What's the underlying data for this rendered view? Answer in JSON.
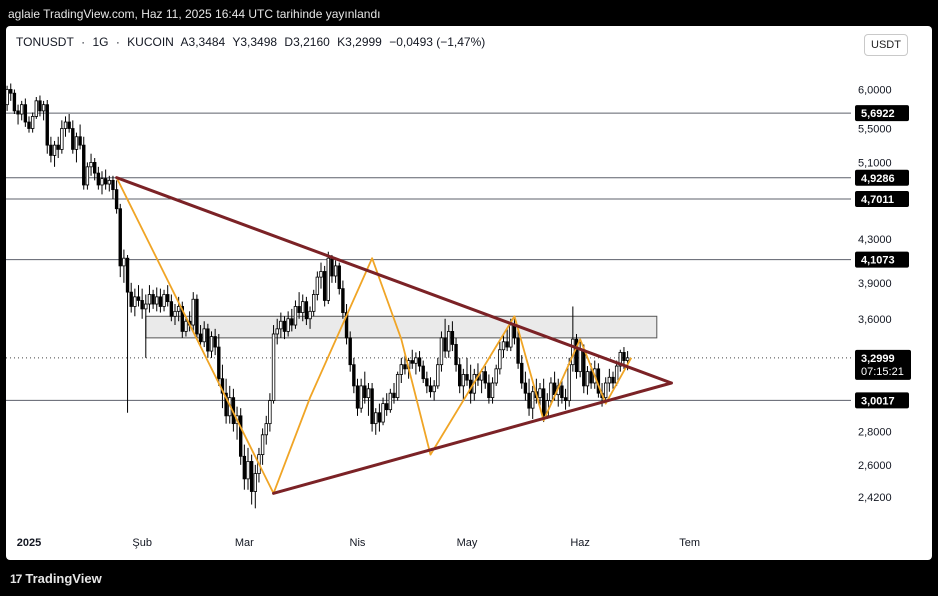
{
  "header": {
    "publisher_text": "aglaie TradingView.com, Haz 11, 2025 16:44 UTC tarihinde yayınlandı"
  },
  "legend": {
    "symbol": "TONUSDT",
    "sep1": "·",
    "interval": "1G",
    "sep2": "·",
    "exchange": "KUCOIN",
    "open": "A3,3484",
    "high": "Y3,3498",
    "low": "D3,2160",
    "close": "K3,2999",
    "change": "−0,0493 (−1,47%)"
  },
  "currency_button": "USDT",
  "footer": {
    "logo_mark": "17",
    "logo_text": "TradingView"
  },
  "colors": {
    "up": "#ffffff",
    "down": "#000000",
    "trendline": "#7b2226",
    "zigzag": "#f0a526",
    "zone_fill": "#e3e3e3",
    "hline": "#5d606b"
  },
  "chart_data": {
    "type": "candlestick",
    "ylim": [
      2.32,
      6.35
    ],
    "y_tick_labels": [
      {
        "value": 6.0,
        "label": "6,0000"
      },
      {
        "value": 5.5,
        "label": "5,5000"
      },
      {
        "value": 5.1,
        "label": "5,1000"
      },
      {
        "value": 4.3,
        "label": "4,3000"
      },
      {
        "value": 3.9,
        "label": "3,9000"
      },
      {
        "value": 3.6,
        "label": "3,6000"
      },
      {
        "value": 2.8,
        "label": "2,8000"
      },
      {
        "value": 2.6,
        "label": "2,6000"
      },
      {
        "value": 2.42,
        "label": "2,4200"
      }
    ],
    "x_tick_labels": [
      {
        "day": 0,
        "label": "2025"
      },
      {
        "day": 31,
        "label": "Şub"
      },
      {
        "day": 59,
        "label": "Mar"
      },
      {
        "day": 90,
        "label": "Nis"
      },
      {
        "day": 120,
        "label": "May"
      },
      {
        "day": 151,
        "label": "Haz"
      },
      {
        "day": 181,
        "label": "Tem"
      }
    ],
    "x_start_offset_days": -7,
    "x_end_day": 196,
    "horizontal_levels": [
      {
        "value": 5.6922,
        "label": "5,6922"
      },
      {
        "value": 4.9286,
        "label": "4,9286"
      },
      {
        "value": 4.7011,
        "label": "4,7011"
      },
      {
        "value": 4.1073,
        "label": "4,1073"
      },
      {
        "value": 3.0017,
        "label": "3,0017"
      }
    ],
    "current_price": {
      "value": 3.2999,
      "label": "3,2999",
      "countdown": "07:15:21"
    },
    "zone": {
      "from_day": 32,
      "to_day": 172,
      "low": 3.45,
      "high": 3.62
    },
    "trendlines": [
      {
        "name": "upper",
        "from": [
          24,
          4.93
        ],
        "to": [
          176,
          3.12
        ]
      },
      {
        "name": "lower",
        "from": [
          67,
          2.44
        ],
        "to": [
          176,
          3.12
        ]
      }
    ],
    "zigzag": [
      [
        24,
        4.93
      ],
      [
        67,
        2.44
      ],
      [
        77,
        3.02
      ],
      [
        94,
        4.12
      ],
      [
        102,
        3.44
      ],
      [
        110,
        2.66
      ],
      [
        133,
        3.62
      ],
      [
        141,
        2.87
      ],
      [
        151,
        3.44
      ],
      [
        158,
        2.98
      ],
      [
        165,
        3.3
      ]
    ],
    "candles": [
      [
        -7,
        5.95,
        6.12,
        5.7,
        5.8
      ],
      [
        -6,
        5.8,
        6.05,
        5.72,
        6.0
      ],
      [
        -5,
        6.0,
        6.08,
        5.85,
        5.95
      ],
      [
        -4,
        5.95,
        6.0,
        5.68,
        5.72
      ],
      [
        -3,
        5.72,
        5.8,
        5.55,
        5.68
      ],
      [
        -2,
        5.68,
        5.85,
        5.6,
        5.8
      ],
      [
        -1,
        5.8,
        5.88,
        5.52,
        5.58
      ],
      [
        0,
        5.58,
        5.65,
        5.45,
        5.5
      ],
      [
        1,
        5.5,
        5.7,
        5.45,
        5.65
      ],
      [
        2,
        5.65,
        5.9,
        5.62,
        5.85
      ],
      [
        3,
        5.85,
        5.92,
        5.65,
        5.72
      ],
      [
        4,
        5.72,
        5.85,
        5.6,
        5.8
      ],
      [
        5,
        5.8,
        5.86,
        5.2,
        5.3
      ],
      [
        6,
        5.3,
        5.4,
        5.1,
        5.18
      ],
      [
        7,
        5.18,
        5.35,
        5.05,
        5.3
      ],
      [
        8,
        5.3,
        5.4,
        5.15,
        5.25
      ],
      [
        9,
        5.25,
        5.6,
        5.2,
        5.5
      ],
      [
        10,
        5.5,
        5.65,
        5.4,
        5.58
      ],
      [
        11,
        5.58,
        5.68,
        5.45,
        5.5
      ],
      [
        12,
        5.5,
        5.6,
        5.2,
        5.25
      ],
      [
        13,
        5.25,
        5.45,
        5.1,
        5.4
      ],
      [
        14,
        5.4,
        5.55,
        5.25,
        5.3
      ],
      [
        15,
        5.3,
        5.4,
        4.8,
        4.85
      ],
      [
        16,
        4.85,
        5.1,
        4.8,
        5.05
      ],
      [
        17,
        5.05,
        5.2,
        4.95,
        5.1
      ],
      [
        18,
        5.1,
        5.15,
        4.9,
        4.98
      ],
      [
        19,
        4.98,
        5.05,
        4.8,
        4.85
      ],
      [
        20,
        4.85,
        5.0,
        4.75,
        4.92
      ],
      [
        21,
        4.92,
        5.02,
        4.8,
        4.86
      ],
      [
        22,
        4.86,
        4.95,
        4.78,
        4.9
      ],
      [
        23,
        4.9,
        4.95,
        4.7,
        4.8
      ],
      [
        24,
        4.8,
        4.9,
        4.55,
        4.6
      ],
      [
        25,
        4.6,
        4.65,
        3.95,
        4.05
      ],
      [
        26,
        4.05,
        4.2,
        3.9,
        4.12
      ],
      [
        27,
        4.12,
        4.15,
        2.92,
        3.82
      ],
      [
        28,
        3.82,
        3.9,
        3.65,
        3.7
      ],
      [
        29,
        3.7,
        3.85,
        3.62,
        3.78
      ],
      [
        30,
        3.78,
        3.88,
        3.7,
        3.75
      ],
      [
        31,
        3.75,
        3.85,
        3.6,
        3.68
      ],
      [
        32,
        3.68,
        3.8,
        3.3,
        3.72
      ],
      [
        33,
        3.72,
        3.88,
        3.65,
        3.8
      ],
      [
        34,
        3.8,
        3.84,
        3.68,
        3.72
      ],
      [
        35,
        3.72,
        3.86,
        3.66,
        3.78
      ],
      [
        36,
        3.78,
        3.85,
        3.65,
        3.7
      ],
      [
        37,
        3.7,
        3.84,
        3.66,
        3.8
      ],
      [
        38,
        3.8,
        3.88,
        3.7,
        3.74
      ],
      [
        39,
        3.74,
        3.8,
        3.58,
        3.62
      ],
      [
        40,
        3.62,
        3.72,
        3.55,
        3.66
      ],
      [
        41,
        3.66,
        3.78,
        3.58,
        3.7
      ],
      [
        42,
        3.7,
        3.74,
        3.45,
        3.5
      ],
      [
        43,
        3.5,
        3.62,
        3.46,
        3.58
      ],
      [
        44,
        3.58,
        3.66,
        3.5,
        3.55
      ],
      [
        45,
        3.55,
        3.82,
        3.5,
        3.76
      ],
      [
        46,
        3.76,
        3.8,
        3.45,
        3.48
      ],
      [
        47,
        3.48,
        3.55,
        3.38,
        3.42
      ],
      [
        48,
        3.42,
        3.58,
        3.38,
        3.52
      ],
      [
        49,
        3.52,
        3.56,
        3.3,
        3.35
      ],
      [
        50,
        3.35,
        3.5,
        3.3,
        3.46
      ],
      [
        51,
        3.46,
        3.52,
        3.32,
        3.38
      ],
      [
        52,
        3.38,
        3.48,
        3.1,
        3.15
      ],
      [
        53,
        3.15,
        3.25,
        2.95,
        3.05
      ],
      [
        54,
        3.05,
        3.15,
        2.85,
        2.9
      ],
      [
        55,
        2.9,
        3.1,
        2.85,
        3.02
      ],
      [
        56,
        3.02,
        3.08,
        2.8,
        2.85
      ],
      [
        57,
        2.85,
        2.96,
        2.75,
        2.9
      ],
      [
        58,
        2.9,
        2.95,
        2.6,
        2.65
      ],
      [
        59,
        2.65,
        2.72,
        2.46,
        2.52
      ],
      [
        60,
        2.52,
        2.7,
        2.46,
        2.62
      ],
      [
        61,
        2.62,
        2.66,
        2.38,
        2.45
      ],
      [
        62,
        2.45,
        2.6,
        2.36,
        2.55
      ],
      [
        63,
        2.55,
        2.7,
        2.5,
        2.66
      ],
      [
        64,
        2.66,
        2.82,
        2.6,
        2.78
      ],
      [
        65,
        2.78,
        2.9,
        2.72,
        2.85
      ],
      [
        66,
        2.85,
        3.05,
        2.8,
        3.0
      ],
      [
        67,
        3.0,
        3.55,
        2.98,
        3.48
      ],
      [
        68,
        3.48,
        3.6,
        3.4,
        3.52
      ],
      [
        69,
        3.52,
        3.65,
        3.45,
        3.58
      ],
      [
        70,
        3.58,
        3.62,
        3.44,
        3.5
      ],
      [
        71,
        3.5,
        3.66,
        3.46,
        3.6
      ],
      [
        72,
        3.6,
        3.68,
        3.5,
        3.55
      ],
      [
        73,
        3.55,
        3.75,
        3.52,
        3.7
      ],
      [
        74,
        3.7,
        3.82,
        3.6,
        3.65
      ],
      [
        75,
        3.65,
        3.8,
        3.58,
        3.74
      ],
      [
        76,
        3.74,
        3.78,
        3.55,
        3.6
      ],
      [
        77,
        3.6,
        3.7,
        3.52,
        3.66
      ],
      [
        78,
        3.66,
        3.84,
        3.62,
        3.8
      ],
      [
        79,
        3.8,
        4.0,
        3.75,
        3.95
      ],
      [
        80,
        3.95,
        4.08,
        3.85,
        4.0
      ],
      [
        81,
        4.0,
        4.05,
        3.7,
        3.75
      ],
      [
        82,
        3.75,
        4.18,
        3.72,
        4.12
      ],
      [
        83,
        4.12,
        4.15,
        3.9,
        3.96
      ],
      [
        84,
        3.96,
        4.1,
        3.9,
        4.05
      ],
      [
        85,
        4.05,
        4.08,
        3.8,
        3.85
      ],
      [
        86,
        3.85,
        3.92,
        3.6,
        3.65
      ],
      [
        87,
        3.65,
        3.72,
        3.4,
        3.45
      ],
      [
        88,
        3.45,
        3.5,
        3.2,
        3.25
      ],
      [
        89,
        3.25,
        3.3,
        3.05,
        3.1
      ],
      [
        90,
        3.1,
        3.15,
        2.9,
        2.95
      ],
      [
        91,
        2.95,
        3.15,
        2.92,
        3.1
      ],
      [
        92,
        3.1,
        3.2,
        2.98,
        3.02
      ],
      [
        93,
        3.02,
        3.12,
        2.9,
        3.08
      ],
      [
        94,
        3.08,
        3.12,
        2.8,
        2.85
      ],
      [
        95,
        2.85,
        2.95,
        2.78,
        2.92
      ],
      [
        96,
        2.92,
        2.98,
        2.8,
        2.86
      ],
      [
        97,
        2.86,
        3.02,
        2.84,
        2.98
      ],
      [
        98,
        2.98,
        3.05,
        2.9,
        2.94
      ],
      [
        99,
        2.94,
        3.08,
        2.92,
        3.05
      ],
      [
        100,
        3.05,
        3.12,
        2.98,
        3.02
      ],
      [
        101,
        3.02,
        3.2,
        3.0,
        3.18
      ],
      [
        102,
        3.18,
        3.3,
        3.12,
        3.25
      ],
      [
        103,
        3.25,
        3.32,
        3.18,
        3.22
      ],
      [
        104,
        3.22,
        3.3,
        3.15,
        3.28
      ],
      [
        105,
        3.28,
        3.36,
        3.22,
        3.26
      ],
      [
        106,
        3.26,
        3.34,
        3.18,
        3.3
      ],
      [
        107,
        3.3,
        3.35,
        3.2,
        3.24
      ],
      [
        108,
        3.24,
        3.28,
        3.12,
        3.15
      ],
      [
        109,
        3.15,
        3.2,
        3.05,
        3.1
      ],
      [
        110,
        3.1,
        3.16,
        3.02,
        3.06
      ],
      [
        111,
        3.06,
        3.14,
        3.0,
        3.1
      ],
      [
        112,
        3.1,
        3.3,
        3.08,
        3.25
      ],
      [
        113,
        3.25,
        3.5,
        3.2,
        3.45
      ],
      [
        114,
        3.45,
        3.6,
        3.3,
        3.35
      ],
      [
        115,
        3.35,
        3.55,
        3.3,
        3.5
      ],
      [
        116,
        3.5,
        3.58,
        3.35,
        3.4
      ],
      [
        117,
        3.4,
        3.45,
        3.2,
        3.25
      ],
      [
        118,
        3.25,
        3.3,
        3.05,
        3.1
      ],
      [
        119,
        3.1,
        3.22,
        3.0,
        3.18
      ],
      [
        120,
        3.18,
        3.3,
        3.1,
        3.14
      ],
      [
        121,
        3.14,
        3.25,
        2.98,
        3.05
      ],
      [
        122,
        3.05,
        3.22,
        3.0,
        3.18
      ],
      [
        123,
        3.18,
        3.26,
        3.1,
        3.14
      ],
      [
        124,
        3.14,
        3.22,
        3.05,
        3.2
      ],
      [
        125,
        3.2,
        3.24,
        3.08,
        3.12
      ],
      [
        126,
        3.12,
        3.18,
        2.98,
        3.02
      ],
      [
        127,
        3.02,
        3.16,
        2.98,
        3.12
      ],
      [
        128,
        3.12,
        3.25,
        3.1,
        3.22
      ],
      [
        129,
        3.22,
        3.42,
        3.18,
        3.36
      ],
      [
        130,
        3.36,
        3.48,
        3.3,
        3.42
      ],
      [
        131,
        3.42,
        3.52,
        3.35,
        3.38
      ],
      [
        132,
        3.38,
        3.6,
        3.35,
        3.55
      ],
      [
        133,
        3.55,
        3.62,
        3.4,
        3.45
      ],
      [
        134,
        3.45,
        3.52,
        3.22,
        3.26
      ],
      [
        135,
        3.26,
        3.32,
        3.08,
        3.12
      ],
      [
        136,
        3.12,
        3.2,
        3.0,
        3.05
      ],
      [
        137,
        3.05,
        3.15,
        2.9,
        2.95
      ],
      [
        138,
        2.95,
        3.1,
        2.88,
        3.06
      ],
      [
        139,
        3.06,
        3.15,
        2.98,
        3.02
      ],
      [
        140,
        3.02,
        3.12,
        2.95,
        3.08
      ],
      [
        141,
        3.08,
        3.15,
        2.86,
        2.9
      ],
      [
        142,
        2.9,
        3.05,
        2.88,
        3.0
      ],
      [
        143,
        3.0,
        3.16,
        2.98,
        3.12
      ],
      [
        144,
        3.12,
        3.2,
        3.0,
        3.04
      ],
      [
        145,
        3.04,
        3.15,
        2.96,
        3.1
      ],
      [
        146,
        3.1,
        3.14,
        2.98,
        3.02
      ],
      [
        147,
        3.02,
        3.08,
        2.94,
        3.0
      ],
      [
        148,
        3.0,
        3.3,
        2.96,
        3.25
      ],
      [
        149,
        3.25,
        3.7,
        3.2,
        3.44
      ],
      [
        150,
        3.44,
        3.48,
        3.15,
        3.2
      ],
      [
        151,
        3.2,
        3.42,
        3.16,
        3.36
      ],
      [
        152,
        3.36,
        3.4,
        3.05,
        3.1
      ],
      [
        153,
        3.1,
        3.24,
        3.04,
        3.2
      ],
      [
        154,
        3.2,
        3.26,
        3.08,
        3.12
      ],
      [
        155,
        3.12,
        3.28,
        3.08,
        3.22
      ],
      [
        156,
        3.22,
        3.26,
        3.02,
        3.05
      ],
      [
        157,
        3.05,
        3.12,
        2.96,
        3.02
      ],
      [
        158,
        3.02,
        3.16,
        2.98,
        3.12
      ],
      [
        159,
        3.12,
        3.22,
        3.06,
        3.16
      ],
      [
        160,
        3.16,
        3.2,
        3.08,
        3.12
      ],
      [
        161,
        3.12,
        3.28,
        3.1,
        3.24
      ],
      [
        162,
        3.24,
        3.36,
        3.2,
        3.34
      ],
      [
        163,
        3.34,
        3.38,
        3.22,
        3.28
      ],
      [
        164,
        3.28,
        3.35,
        3.21,
        3.3
      ]
    ]
  }
}
